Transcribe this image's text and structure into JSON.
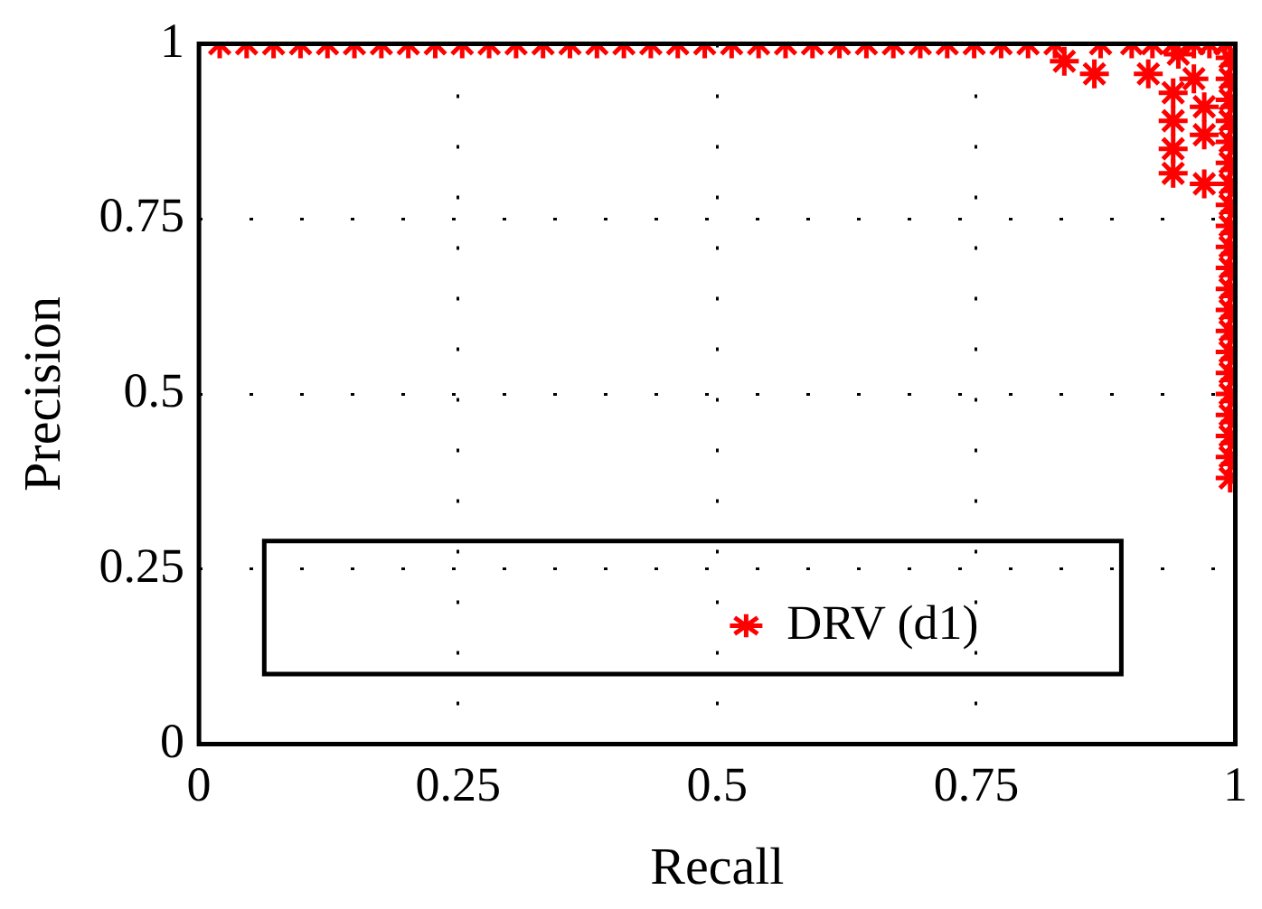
{
  "chart_data": {
    "type": "scatter",
    "xlabel": "Recall",
    "ylabel": "Precision",
    "xlim": [
      0,
      1
    ],
    "ylim": [
      0,
      1
    ],
    "xticks": [
      0,
      0.25,
      0.5,
      0.75,
      1
    ],
    "yticks": [
      0,
      0.25,
      0.5,
      0.75,
      1
    ],
    "grid": true,
    "legend": "bottom",
    "marker": "cross",
    "series": [
      {
        "name": "DRV (d1)",
        "color": "#ff0000",
        "x": [
          0.02,
          0.046,
          0.072,
          0.098,
          0.124,
          0.15,
          0.176,
          0.202,
          0.228,
          0.254,
          0.28,
          0.306,
          0.332,
          0.358,
          0.384,
          0.41,
          0.436,
          0.462,
          0.488,
          0.514,
          0.54,
          0.566,
          0.592,
          0.618,
          0.644,
          0.67,
          0.696,
          0.722,
          0.748,
          0.774,
          0.8,
          0.826,
          0.87,
          0.9,
          0.92,
          0.94,
          0.96,
          0.975,
          0.99,
          0.835,
          0.864,
          0.916,
          0.94,
          0.94,
          0.94,
          0.94,
          0.97,
          0.97,
          0.945,
          0.96,
          0.97,
          0.995,
          0.995,
          0.995,
          0.995,
          0.995,
          0.995,
          0.995,
          0.995,
          0.995,
          0.995,
          0.995,
          0.995,
          0.995,
          0.995,
          0.995,
          0.995,
          0.995,
          0.995,
          0.995,
          0.995,
          0.995,
          1,
          1,
          1,
          1,
          1,
          1,
          1,
          1,
          1,
          1,
          1,
          1,
          1,
          1,
          1,
          1,
          1,
          1,
          1,
          1
        ],
        "values": [
          1,
          1,
          1,
          1,
          1,
          1,
          1,
          1,
          1,
          1,
          1,
          1,
          1,
          1,
          1,
          1,
          1,
          1,
          1,
          1,
          1,
          1,
          1,
          1,
          1,
          1,
          1,
          1,
          1,
          1,
          1,
          1,
          1,
          1,
          1,
          1,
          1,
          1,
          1,
          0.975,
          0.957,
          0.957,
          0.93,
          0.89,
          0.85,
          0.815,
          0.8,
          0.91,
          0.985,
          0.95,
          0.87,
          0.98,
          0.95,
          0.92,
          0.89,
          0.86,
          0.83,
          0.8,
          0.77,
          0.74,
          0.71,
          0.68,
          0.65,
          0.62,
          0.59,
          0.56,
          0.53,
          0.5,
          0.47,
          0.44,
          0.41,
          0.38,
          0.97,
          0.94,
          0.91,
          0.88,
          0.85,
          0.82,
          0.79,
          0.76,
          0.73,
          0.7,
          0.67,
          0.64,
          0.61,
          0.58,
          0.55,
          0.52,
          0.49,
          0.46,
          0.43,
          0.4
        ]
      }
    ]
  }
}
